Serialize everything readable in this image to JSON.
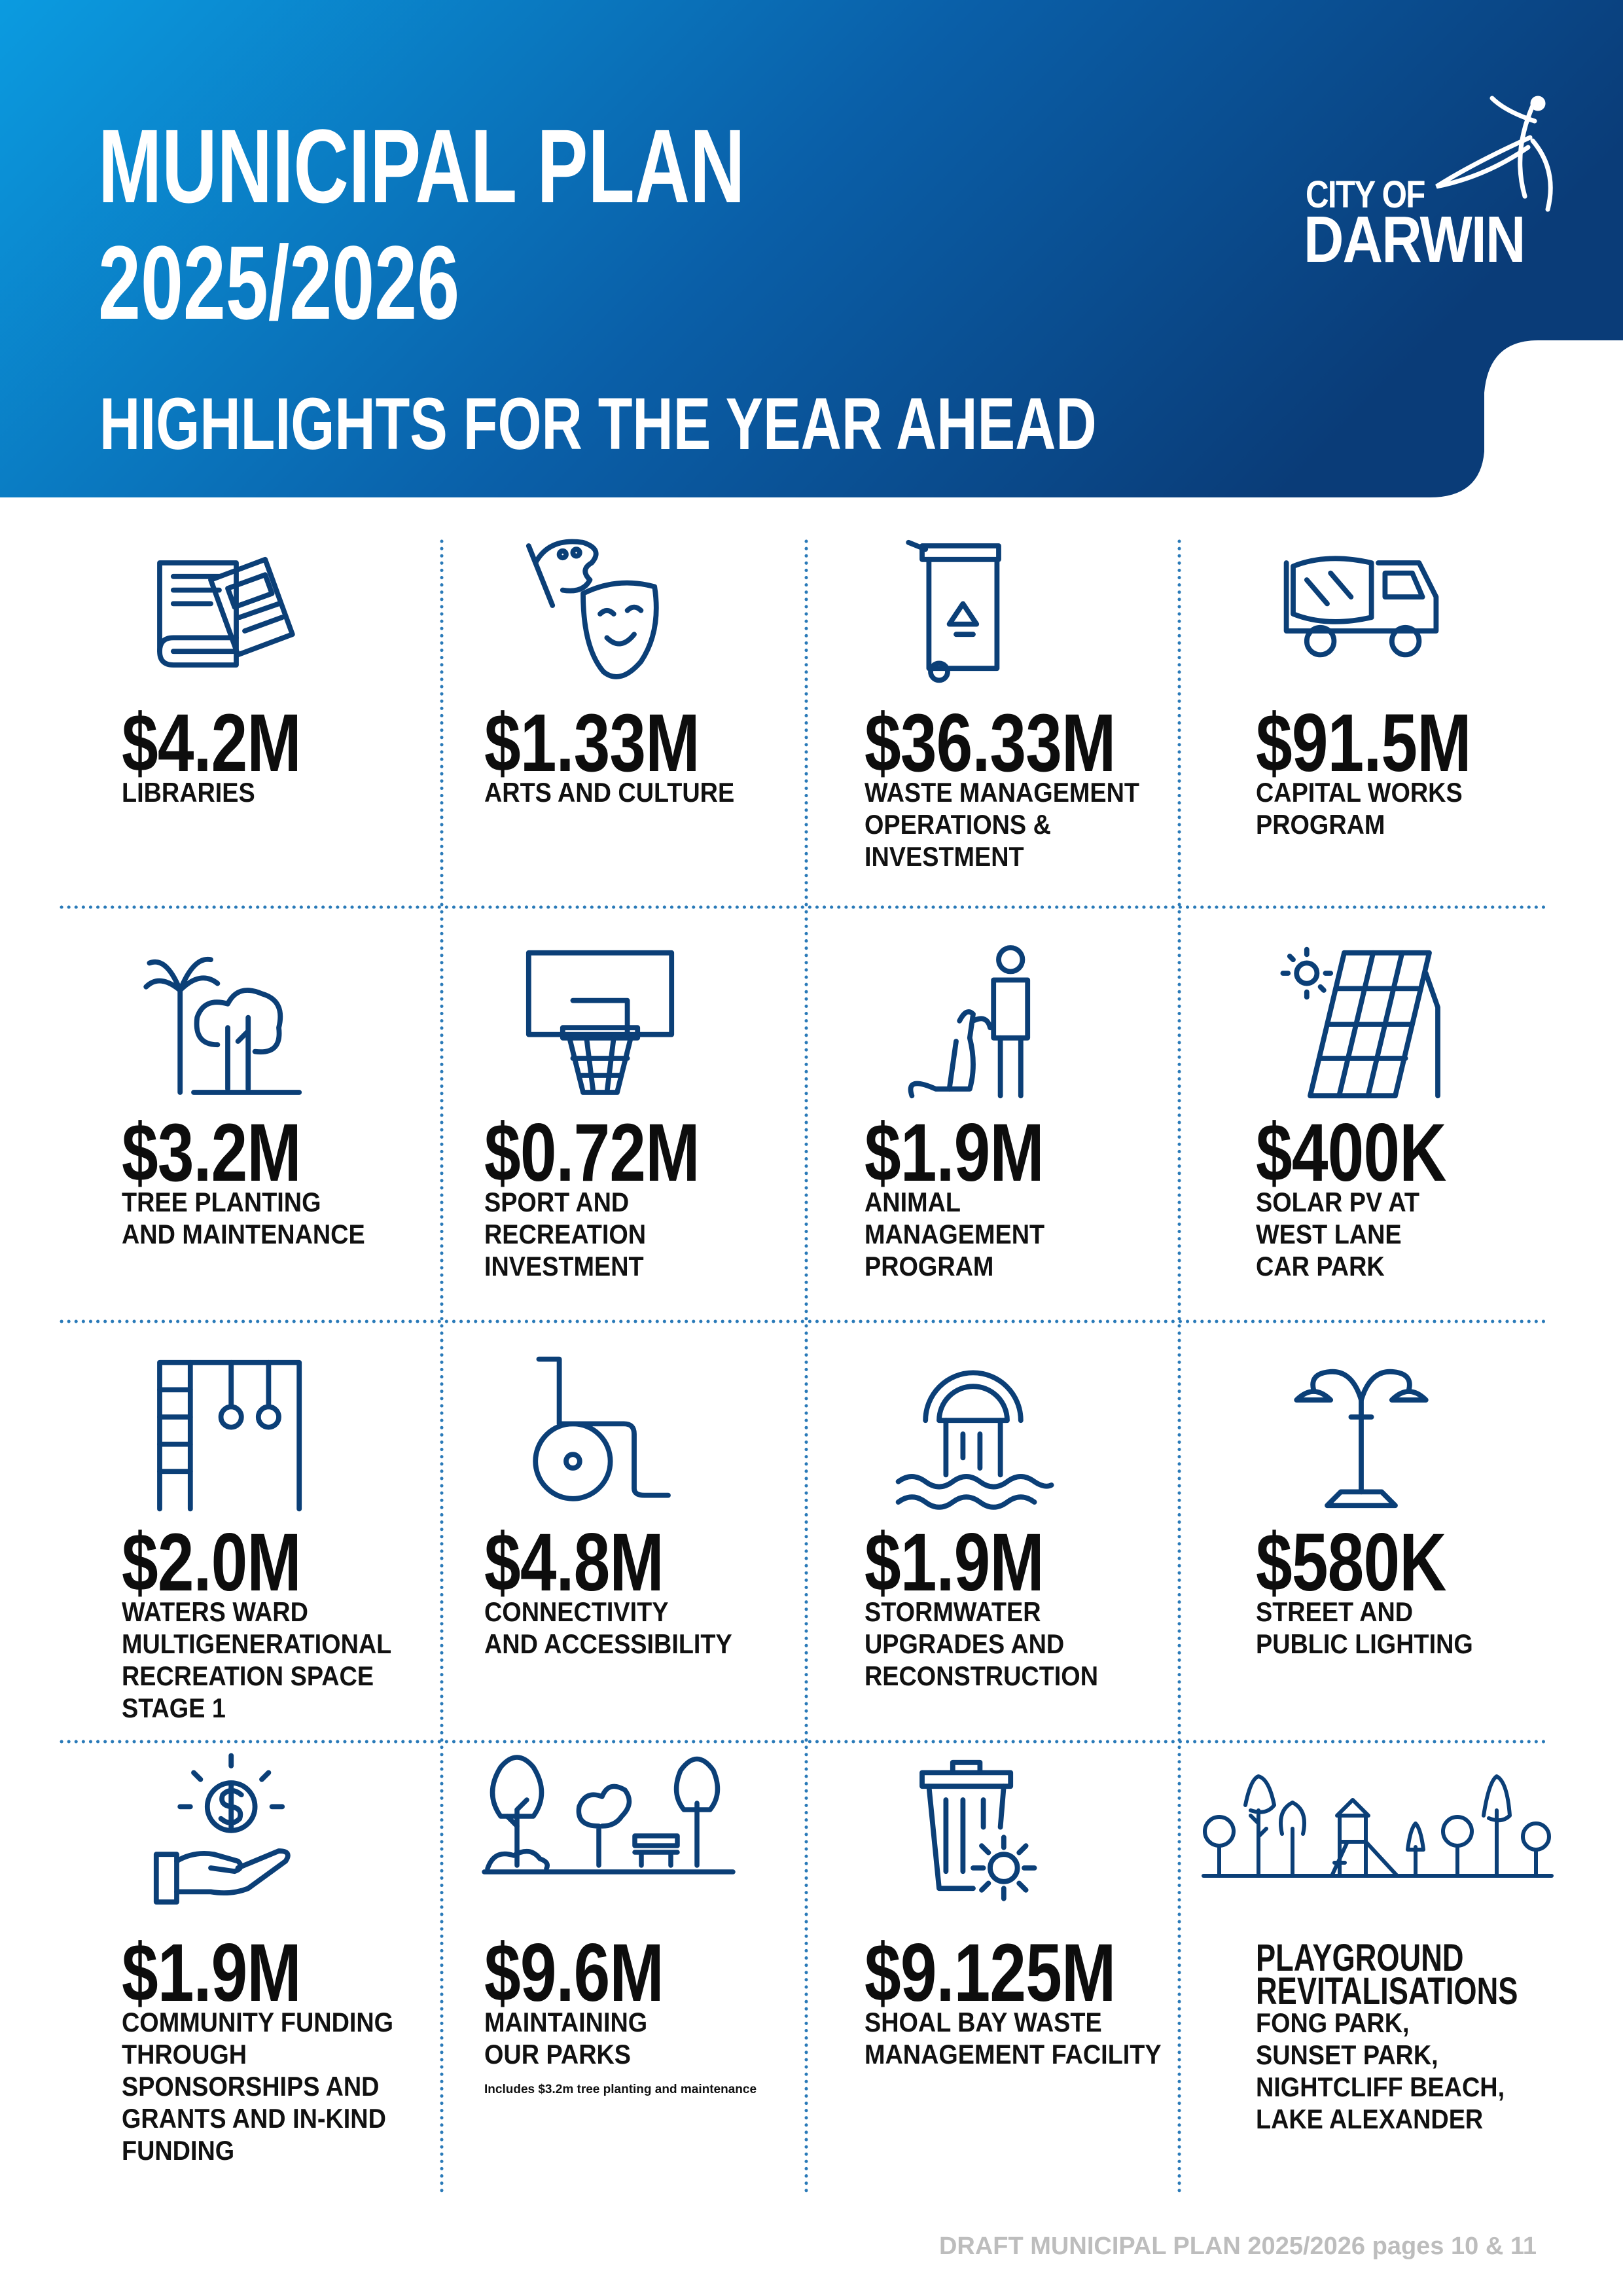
{
  "header": {
    "title_lines": [
      "MUNICIPAL PLAN",
      "2025/2026"
    ],
    "subtitle": "HIGHLIGHTS FOR THE YEAR AHEAD",
    "logo": [
      "CITY OF",
      "DARWIN"
    ]
  },
  "items": [
    {
      "amount": "$4.2M",
      "label": [
        "LIBRARIES"
      ]
    },
    {
      "amount": "$1.33M",
      "label": [
        "ARTS AND CULTURE"
      ]
    },
    {
      "amount": "$36.33M",
      "label": [
        "WASTE MANAGEMENT",
        "OPERATIONS &",
        "INVESTMENT"
      ]
    },
    {
      "amount": "$91.5M",
      "label": [
        "CAPITAL WORKS",
        "PROGRAM"
      ]
    },
    {
      "amount": "$3.2M",
      "label": [
        "TREE PLANTING",
        "AND MAINTENANCE"
      ]
    },
    {
      "amount": "$0.72M",
      "label": [
        "SPORT AND",
        "RECREATION",
        "INVESTMENT"
      ]
    },
    {
      "amount": "$1.9M",
      "label": [
        "ANIMAL",
        "MANAGEMENT",
        "PROGRAM"
      ]
    },
    {
      "amount": "$400K",
      "label": [
        "SOLAR PV AT",
        "WEST LANE",
        "CAR PARK"
      ]
    },
    {
      "amount": "$2.0M",
      "label": [
        "WATERS WARD",
        "MULTIGENERATIONAL",
        "RECREATION SPACE",
        "STAGE 1"
      ]
    },
    {
      "amount": "$4.8M",
      "label": [
        "CONNECTIVITY",
        "AND ACCESSIBILITY"
      ]
    },
    {
      "amount": "$1.9M",
      "label": [
        "STORMWATER",
        "UPGRADES AND",
        "RECONSTRUCTION"
      ]
    },
    {
      "amount": "$580K",
      "label": [
        "STREET AND",
        "PUBLIC LIGHTING"
      ]
    },
    {
      "amount": "$1.9M",
      "label": [
        "COMMUNITY FUNDING",
        "THROUGH",
        "SPONSORSHIPS AND",
        "GRANTS AND IN-KIND",
        "FUNDING"
      ]
    },
    {
      "amount": "$9.6M",
      "label": [
        "MAINTAINING",
        "OUR PARKS"
      ],
      "note": "Includes $3.2m tree planting and maintenance"
    },
    {
      "amount": "$9.125M",
      "label": [
        "SHOAL BAY WASTE",
        "MANAGEMENT FACILITY"
      ]
    },
    {
      "heading": [
        "PLAYGROUND",
        "REVITALISATIONS"
      ],
      "label": [
        "FONG PARK,",
        "SUNSET PARK,",
        "NIGHTCLIFF BEACH,",
        "LAKE ALEXANDER"
      ]
    }
  ],
  "footer": "DRAFT MUNICIPAL PLAN 2025/2026 pages 10 & 11"
}
